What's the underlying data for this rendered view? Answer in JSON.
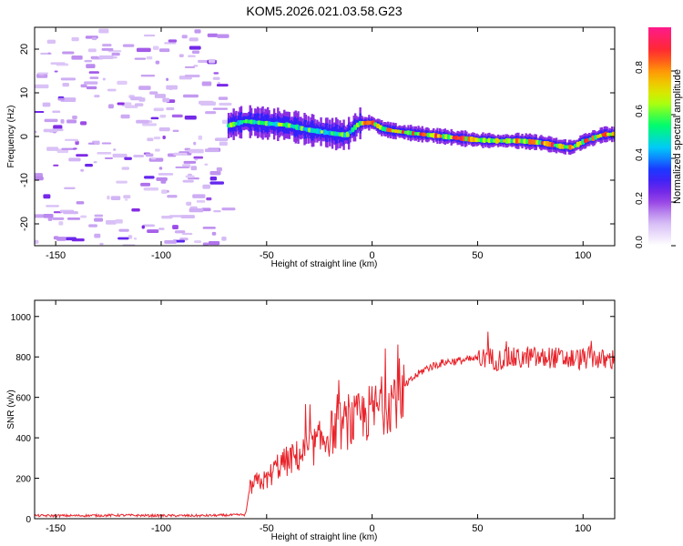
{
  "title": "KOM5.2026.021.03.58.G23",
  "colors": {
    "axis": "#000000",
    "snr_line": "#e8232a",
    "colormap": [
      "#ffffff",
      "#d4b8f5",
      "#8a2be2",
      "#2020ff",
      "#00c8ff",
      "#00ff66",
      "#c8ff00",
      "#ffb000",
      "#ff2a2a",
      "#ff1a8c"
    ]
  },
  "chart_data": [
    {
      "type": "heatmap",
      "name": "spectrogram",
      "xlabel": "Height of straight line (km)",
      "ylabel": "Frequency (Hz)",
      "xlim": [
        -160,
        115
      ],
      "ylim": [
        -25,
        25
      ],
      "xticks": [
        -150,
        -100,
        -50,
        0,
        50,
        100
      ],
      "yticks": [
        -20,
        -10,
        0,
        10,
        20
      ],
      "signal_track": {
        "x": [
          -68,
          -60,
          -50,
          -40,
          -30,
          -20,
          -12,
          -6,
          0,
          5,
          10,
          20,
          30,
          40,
          50,
          60,
          70,
          80,
          90,
          95,
          100,
          110,
          115
        ],
        "hz": [
          2.5,
          3.5,
          3.0,
          2.6,
          1.5,
          0.8,
          0.3,
          3.0,
          3.2,
          1.8,
          1.3,
          0.7,
          0.2,
          -0.3,
          -0.8,
          -1.0,
          -1.0,
          -1.4,
          -2.3,
          -2.5,
          -1.2,
          0.5,
          0.5
        ]
      },
      "colorbar": {
        "label": "Normalized spectral amplitude",
        "ticks": [
          0.0,
          0.2,
          0.4,
          0.6,
          0.8
        ],
        "tick_labels": [
          "0.0",
          "0.2",
          "0.4",
          "0.6",
          "0.8"
        ],
        "range": [
          0,
          1
        ]
      }
    },
    {
      "type": "line",
      "name": "snr",
      "xlabel": "Height of straight line (km)",
      "ylabel": "SNR (v/v)",
      "xlim": [
        -160,
        115
      ],
      "ylim": [
        0,
        1080
      ],
      "xticks": [
        -150,
        -100,
        -50,
        0,
        50,
        100
      ],
      "yticks": [
        0,
        200,
        400,
        600,
        800,
        1000
      ],
      "series": [
        {
          "name": "SNR",
          "x": [
            -160,
            -140,
            -120,
            -100,
            -80,
            -65,
            -60,
            -58,
            -55,
            -50,
            -45,
            -40,
            -35,
            -30,
            -25,
            -20,
            -15,
            -10,
            -5,
            0,
            5,
            10,
            15,
            20,
            25,
            30,
            35,
            40,
            45,
            50,
            55,
            60,
            65,
            70,
            75,
            80,
            85,
            90,
            95,
            100,
            105,
            110,
            115
          ],
          "y": [
            15,
            15,
            17,
            15,
            15,
            18,
            20,
            150,
            180,
            190,
            260,
            285,
            310,
            340,
            380,
            420,
            460,
            470,
            500,
            530,
            560,
            600,
            650,
            700,
            740,
            760,
            775,
            780,
            785,
            790,
            795,
            785,
            795,
            790,
            800,
            790,
            800,
            790,
            790,
            790,
            800,
            780,
            790
          ]
        }
      ]
    }
  ]
}
